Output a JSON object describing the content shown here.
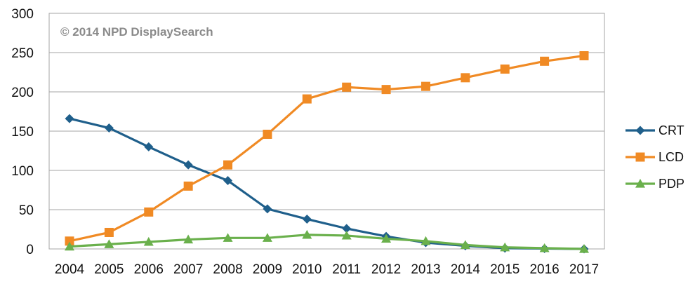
{
  "chart_data": {
    "type": "line",
    "title": "",
    "xlabel": "",
    "ylabel": "",
    "watermark": "© 2014 NPD DisplaySearch",
    "categories": [
      "2004",
      "2005",
      "2006",
      "2007",
      "2008",
      "2009",
      "2010",
      "2011",
      "2012",
      "2013",
      "2014",
      "2015",
      "2016",
      "2017"
    ],
    "ylim": [
      0,
      300
    ],
    "yticks": [
      0,
      50,
      100,
      150,
      200,
      250,
      300
    ],
    "grid": true,
    "legend_position": "right",
    "series": [
      {
        "name": "CRT",
        "color": "#1f5f8b",
        "marker": "diamond",
        "values": [
          166,
          154,
          130,
          107,
          87,
          51,
          38,
          26,
          16,
          8,
          4,
          1,
          0.5,
          0
        ]
      },
      {
        "name": "LCD",
        "color": "#f08a24",
        "marker": "square",
        "values": [
          10,
          21,
          47,
          80,
          107,
          146,
          191,
          206,
          203,
          207,
          218,
          229,
          239,
          246
        ]
      },
      {
        "name": "PDP",
        "color": "#6ab04c",
        "marker": "triangle",
        "values": [
          3,
          6,
          9,
          12,
          14,
          14,
          18,
          17,
          13,
          10,
          5,
          2,
          1,
          0
        ]
      }
    ]
  }
}
